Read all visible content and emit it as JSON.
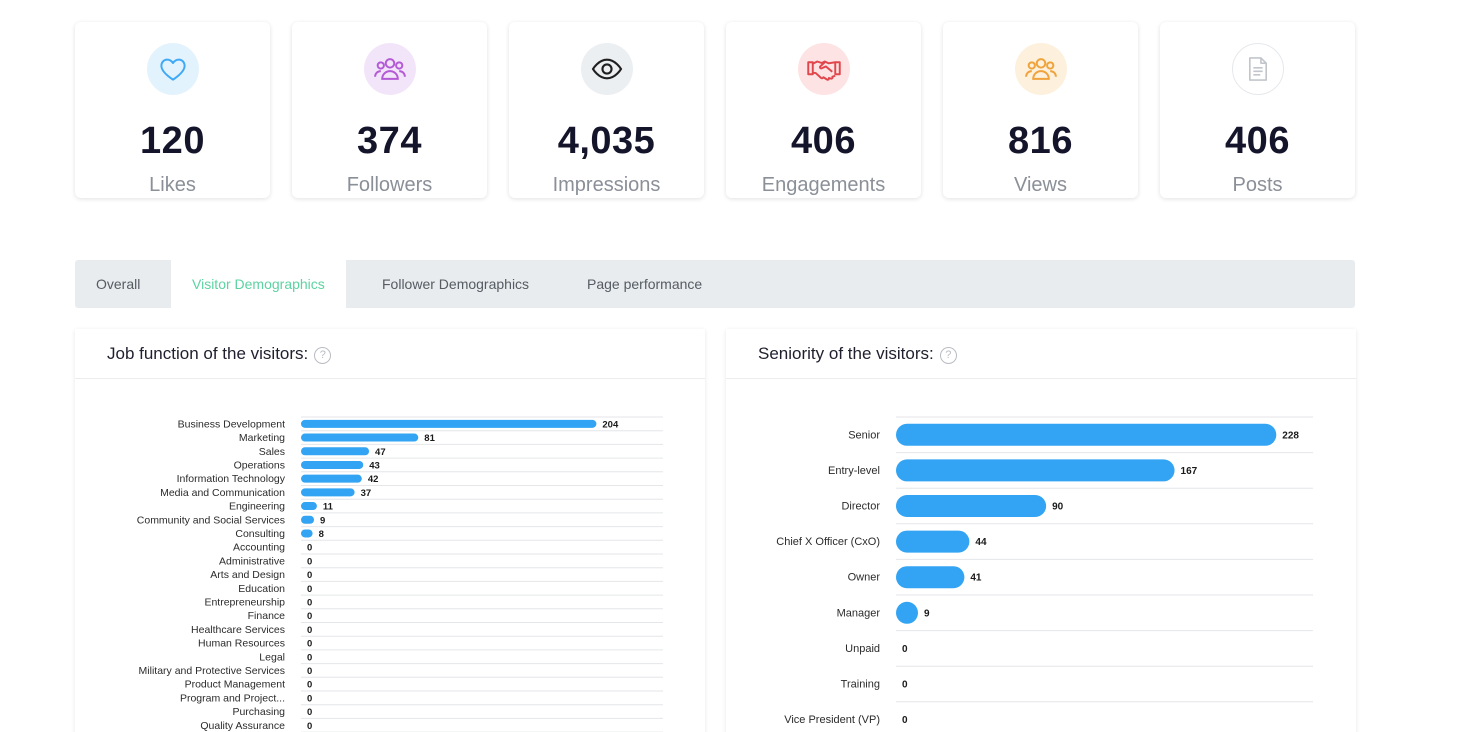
{
  "stats": [
    {
      "value": "120",
      "label": "Likes",
      "icon": "heart-icon",
      "color": "#3fa9f5",
      "bg": "#e3f3fd"
    },
    {
      "value": "374",
      "label": "Followers",
      "icon": "followers-icon",
      "color": "#b45ad6",
      "bg": "#f3e5f9"
    },
    {
      "value": "4,035",
      "label": "Impressions",
      "icon": "eye-icon",
      "color": "#1f1f1f",
      "bg": "#eceff2"
    },
    {
      "value": "406",
      "label": "Engagements",
      "icon": "handshake-icon",
      "color": "#e0474c",
      "bg": "#fde3e3"
    },
    {
      "value": "816",
      "label": "Views",
      "icon": "views-icon",
      "color": "#f0a23b",
      "bg": "#fdf1de"
    },
    {
      "value": "406",
      "label": "Posts",
      "icon": "document-icon",
      "color": "#c2c6cc",
      "bg": "#ffffff"
    }
  ],
  "tabs": [
    {
      "label": "Overall",
      "active": false
    },
    {
      "label": "Visitor Demographics",
      "active": true
    },
    {
      "label": "Follower Demographics",
      "active": false
    },
    {
      "label": "Page performance",
      "active": false
    }
  ],
  "panels": {
    "job_title": "Job function of the visitors:",
    "seniority_title": "Seniority of the visitors:",
    "help_glyph": "?"
  },
  "colors": {
    "bar": "#33a4f3",
    "accent": "#5cd3a1"
  },
  "chart_data": [
    {
      "type": "bar",
      "orientation": "horizontal",
      "title": "Job function of the visitors:",
      "categories": [
        "Business Development",
        "Marketing",
        "Sales",
        "Operations",
        "Information Technology",
        "Media and Communication",
        "Engineering",
        "Community and Social Services",
        "Consulting",
        "Accounting",
        "Administrative",
        "Arts and Design",
        "Education",
        "Entrepreneurship",
        "Finance",
        "Healthcare Services",
        "Human Resources",
        "Legal",
        "Military and Protective Services",
        "Product Management",
        "Program and Project...",
        "Purchasing",
        "Quality Assurance"
      ],
      "values": [
        204,
        81,
        47,
        43,
        42,
        37,
        11,
        9,
        8,
        0,
        0,
        0,
        0,
        0,
        0,
        0,
        0,
        0,
        0,
        0,
        0,
        0,
        0
      ],
      "xlim": [
        0,
        250
      ],
      "grid": true
    },
    {
      "type": "bar",
      "orientation": "horizontal",
      "title": "Seniority of the visitors:",
      "categories": [
        "Senior",
        "Entry-level",
        "Director",
        "Chief X Officer (CxO)",
        "Owner",
        "Manager",
        "Unpaid",
        "Training",
        "Vice President (VP)"
      ],
      "values": [
        228,
        167,
        90,
        44,
        41,
        9,
        0,
        0,
        0
      ],
      "xlim": [
        0,
        250
      ],
      "grid": true
    }
  ]
}
